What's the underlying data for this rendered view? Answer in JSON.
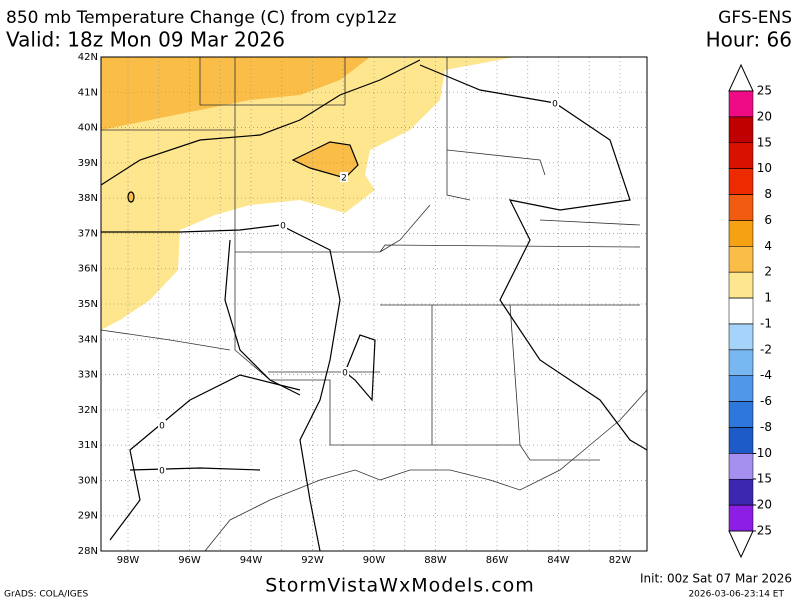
{
  "header": {
    "title": "850 mb Temperature Change (C) from cyp12z",
    "valid": "Valid: 18z Mon 09 Mar 2026",
    "model": "GFS-ENS",
    "hour": "Hour: 66"
  },
  "map": {
    "lat_labels": [
      "42N",
      "41N",
      "40N",
      "39N",
      "38N",
      "37N",
      "36N",
      "35N",
      "34N",
      "33N",
      "32N",
      "31N",
      "30N",
      "29N",
      "28N"
    ],
    "lon_labels": [
      "98W",
      "96W",
      "94W",
      "92W",
      "90W",
      "88W",
      "86W",
      "84W",
      "82W"
    ],
    "contour_labels": [
      "0",
      "0",
      "0",
      "0",
      "0",
      "2"
    ]
  },
  "colorbar": {
    "levels": [
      25,
      20,
      15,
      10,
      8,
      6,
      4,
      2,
      1,
      -1,
      -2,
      -4,
      -6,
      -8,
      -10,
      -15,
      -20,
      -25
    ],
    "colors": [
      "#ef0b86",
      "#c00000",
      "#d91200",
      "#ee2a00",
      "#f25c10",
      "#f6a013",
      "#f9bd48",
      "#fde68e",
      "#ffffff",
      "#a5d3fa",
      "#78b8f2",
      "#4f97e8",
      "#2f78db",
      "#1d5cc8",
      "#a590f0",
      "#3c28b0",
      "#8c1ee6"
    ]
  },
  "footer": {
    "credit": "GrADS: COLA/IGES",
    "site": "StormVistaWxModels.com",
    "init": "Init: 00z Sat 07 Mar 2026",
    "stamp": "2026-03-06-23:14 ET"
  }
}
